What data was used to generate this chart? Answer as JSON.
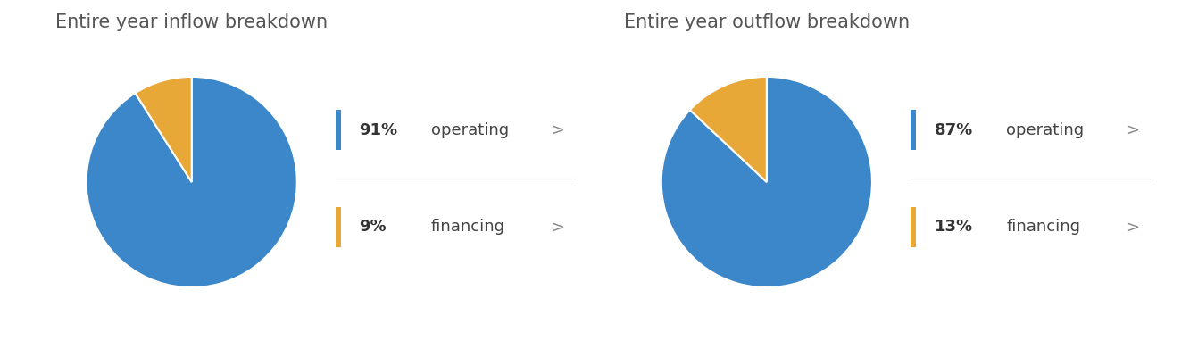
{
  "charts": [
    {
      "title": "Entire year inflow breakdown",
      "slices": [
        91,
        9
      ],
      "colors": [
        "#3b87c9",
        "#e8a838"
      ],
      "labels": [
        "operating",
        "financing"
      ],
      "percentages": [
        "91%",
        "9%"
      ]
    },
    {
      "title": "Entire year outflow breakdown",
      "slices": [
        87,
        13
      ],
      "colors": [
        "#3b87c9",
        "#e8a838"
      ],
      "labels": [
        "operating",
        "financing"
      ],
      "percentages": [
        "87%",
        "13%"
      ]
    }
  ],
  "bg_color": "#ffffff",
  "title_color": "#555555",
  "label_color": "#444444",
  "pct_color": "#333333",
  "divider_color": "#cccccc",
  "chevron_color": "#888888",
  "title_fontsize": 15,
  "label_fontsize": 13,
  "pct_fontsize": 13
}
